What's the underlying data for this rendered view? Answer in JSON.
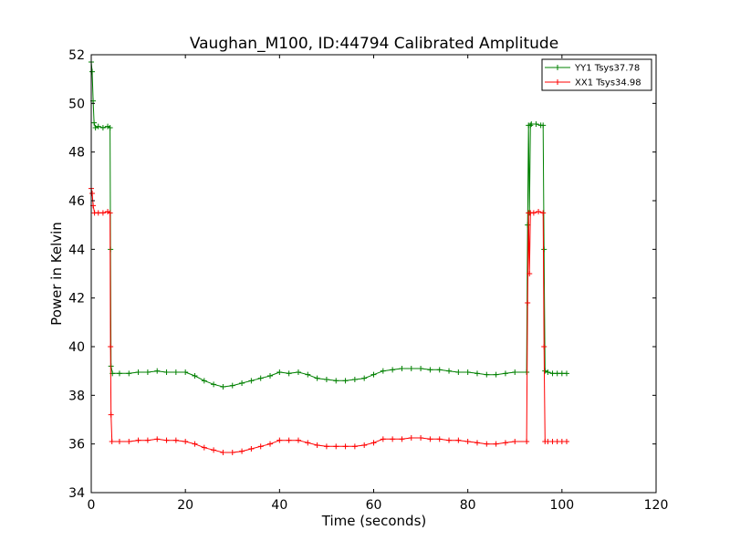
{
  "chart_data": {
    "type": "line",
    "title": "Vaughan_M100, ID:44794 Calibrated Amplitude",
    "xlabel": "Time (seconds)",
    "ylabel": "Power in Kelvin",
    "xlim": [
      0,
      120
    ],
    "ylim": [
      34,
      52
    ],
    "xticks": [
      0,
      20,
      40,
      60,
      80,
      100,
      120
    ],
    "yticks": [
      34,
      36,
      38,
      40,
      42,
      44,
      46,
      48,
      50,
      52
    ],
    "grid": false,
    "legend_position": "top-right",
    "markers": "plus",
    "series": [
      {
        "name": "YY1 Tsys37.78",
        "color": "#008000",
        "points": [
          [
            0.0,
            51.7
          ],
          [
            0.2,
            51.3
          ],
          [
            0.4,
            50.1
          ],
          [
            0.6,
            49.2
          ],
          [
            0.9,
            49.0
          ],
          [
            1.5,
            49.05
          ],
          [
            2.5,
            49.0
          ],
          [
            3.5,
            49.05
          ],
          [
            4.0,
            49.0
          ],
          [
            4.1,
            44.0
          ],
          [
            4.2,
            39.2
          ],
          [
            4.5,
            38.9
          ],
          [
            6,
            38.9
          ],
          [
            8,
            38.9
          ],
          [
            10,
            38.95
          ],
          [
            12,
            38.95
          ],
          [
            14,
            39.0
          ],
          [
            16,
            38.95
          ],
          [
            18,
            38.95
          ],
          [
            20,
            38.95
          ],
          [
            22,
            38.8
          ],
          [
            24,
            38.6
          ],
          [
            26,
            38.45
          ],
          [
            28,
            38.35
          ],
          [
            30,
            38.4
          ],
          [
            32,
            38.5
          ],
          [
            34,
            38.6
          ],
          [
            36,
            38.7
          ],
          [
            38,
            38.8
          ],
          [
            40,
            38.95
          ],
          [
            42,
            38.9
          ],
          [
            44,
            38.95
          ],
          [
            46,
            38.85
          ],
          [
            48,
            38.7
          ],
          [
            50,
            38.65
          ],
          [
            52,
            38.6
          ],
          [
            54,
            38.6
          ],
          [
            56,
            38.65
          ],
          [
            58,
            38.7
          ],
          [
            60,
            38.85
          ],
          [
            62,
            39.0
          ],
          [
            64,
            39.05
          ],
          [
            66,
            39.1
          ],
          [
            68,
            39.1
          ],
          [
            70,
            39.1
          ],
          [
            72,
            39.05
          ],
          [
            74,
            39.05
          ],
          [
            76,
            39.0
          ],
          [
            78,
            38.95
          ],
          [
            80,
            38.95
          ],
          [
            82,
            38.9
          ],
          [
            84,
            38.85
          ],
          [
            86,
            38.85
          ],
          [
            88,
            38.9
          ],
          [
            90,
            38.95
          ],
          [
            92.5,
            38.95
          ],
          [
            92.7,
            45.0
          ],
          [
            92.9,
            49.1
          ],
          [
            93.1,
            45.5
          ],
          [
            93.3,
            49.1
          ],
          [
            93.5,
            49.15
          ],
          [
            94.5,
            49.15
          ],
          [
            95.5,
            49.1
          ],
          [
            96.0,
            49.1
          ],
          [
            96.2,
            44.0
          ],
          [
            96.4,
            39.0
          ],
          [
            97,
            38.95
          ],
          [
            98,
            38.9
          ],
          [
            99,
            38.9
          ],
          [
            100,
            38.9
          ],
          [
            101,
            38.9
          ]
        ]
      },
      {
        "name": "XX1 Tsys34.98",
        "color": "#ff0000",
        "points": [
          [
            0.0,
            46.5
          ],
          [
            0.2,
            46.3
          ],
          [
            0.4,
            45.8
          ],
          [
            0.7,
            45.5
          ],
          [
            1.5,
            45.5
          ],
          [
            2.5,
            45.5
          ],
          [
            3.5,
            45.55
          ],
          [
            4.0,
            45.5
          ],
          [
            4.1,
            40.0
          ],
          [
            4.2,
            37.2
          ],
          [
            4.4,
            36.1
          ],
          [
            6,
            36.1
          ],
          [
            8,
            36.1
          ],
          [
            10,
            36.15
          ],
          [
            12,
            36.15
          ],
          [
            14,
            36.2
          ],
          [
            16,
            36.15
          ],
          [
            18,
            36.15
          ],
          [
            20,
            36.1
          ],
          [
            22,
            36.0
          ],
          [
            24,
            35.85
          ],
          [
            26,
            35.75
          ],
          [
            28,
            35.65
          ],
          [
            30,
            35.65
          ],
          [
            32,
            35.7
          ],
          [
            34,
            35.8
          ],
          [
            36,
            35.9
          ],
          [
            38,
            36.0
          ],
          [
            40,
            36.15
          ],
          [
            42,
            36.15
          ],
          [
            44,
            36.15
          ],
          [
            46,
            36.05
          ],
          [
            48,
            35.95
          ],
          [
            50,
            35.9
          ],
          [
            52,
            35.9
          ],
          [
            54,
            35.9
          ],
          [
            56,
            35.9
          ],
          [
            58,
            35.95
          ],
          [
            60,
            36.05
          ],
          [
            62,
            36.2
          ],
          [
            64,
            36.2
          ],
          [
            66,
            36.2
          ],
          [
            68,
            36.25
          ],
          [
            70,
            36.25
          ],
          [
            72,
            36.2
          ],
          [
            74,
            36.2
          ],
          [
            76,
            36.15
          ],
          [
            78,
            36.15
          ],
          [
            80,
            36.1
          ],
          [
            82,
            36.05
          ],
          [
            84,
            36.0
          ],
          [
            86,
            36.0
          ],
          [
            88,
            36.05
          ],
          [
            90,
            36.1
          ],
          [
            92.5,
            36.1
          ],
          [
            92.7,
            41.8
          ],
          [
            92.9,
            45.5
          ],
          [
            93.1,
            43.0
          ],
          [
            93.3,
            45.5
          ],
          [
            94,
            45.5
          ],
          [
            95,
            45.55
          ],
          [
            96.0,
            45.5
          ],
          [
            96.2,
            40.0
          ],
          [
            96.4,
            36.1
          ],
          [
            97,
            36.1
          ],
          [
            98,
            36.1
          ],
          [
            99,
            36.1
          ],
          [
            100,
            36.1
          ],
          [
            101,
            36.1
          ]
        ]
      }
    ]
  }
}
